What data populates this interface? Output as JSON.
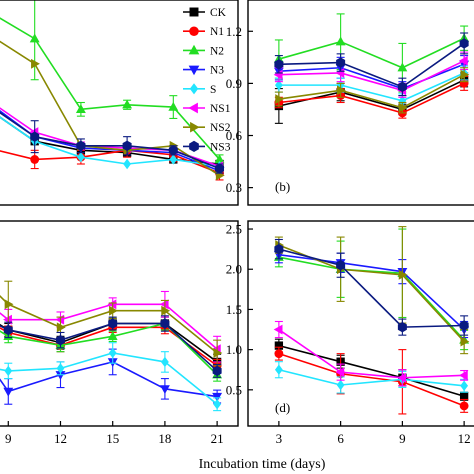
{
  "chart_data": {
    "type": "line",
    "xlabel": "Incubation time (days)",
    "legend": {
      "placement": "top-right of panel a",
      "entries": [
        {
          "name": "CK",
          "color": "#000000",
          "marker": "square"
        },
        {
          "name": "N1",
          "color": "#ff0000",
          "marker": "circle"
        },
        {
          "name": "N2",
          "color": "#22dd22",
          "marker": "triangle-up"
        },
        {
          "name": "N3",
          "color": "#1a1aff",
          "marker": "triangle-down"
        },
        {
          "name": "S",
          "color": "#22e5ff",
          "marker": "diamond"
        },
        {
          "name": "NS1",
          "color": "#ff00ff",
          "marker": "triangle-left"
        },
        {
          "name": "NS2",
          "color": "#888800",
          "marker": "triangle-right"
        },
        {
          "name": "NS3",
          "color": "#0a1a80",
          "marker": "hexagon"
        }
      ]
    },
    "panels": [
      {
        "id": "a",
        "panel_label": "",
        "x_ticks": [],
        "x_tick_labels": [],
        "y_tick_labels": [],
        "series": [
          {
            "name": "CK",
            "x": [
              6,
              9,
              12,
              15,
              18,
              21
            ],
            "y": [
              0.62,
              0.48,
              0.44,
              0.43,
              0.4,
              0.38
            ]
          },
          {
            "name": "N1",
            "x": [
              6,
              9,
              12,
              15,
              18,
              21
            ],
            "y": [
              0.45,
              0.4,
              0.41,
              0.44,
              0.42,
              0.34
            ],
            "err": [
              0,
              0.04,
              0.03,
              0.03,
              0.03,
              0.03
            ]
          },
          {
            "name": "N2",
            "x": [
              6,
              9,
              12,
              15,
              18,
              21
            ],
            "y": [
              1.05,
              0.93,
              0.62,
              0.64,
              0.63,
              0.4
            ],
            "err": [
              0,
              0.18,
              0.03,
              0.02,
              0.05,
              0.02
            ]
          },
          {
            "name": "N3",
            "x": [
              6,
              9,
              12,
              15,
              18,
              21
            ],
            "y": [
              0.65,
              0.5,
              0.45,
              0.44,
              0.43,
              0.35
            ]
          },
          {
            "name": "S",
            "x": [
              6,
              9,
              12,
              15,
              18,
              21
            ],
            "y": [
              0.62,
              0.48,
              0.41,
              0.38,
              0.4,
              0.37
            ]
          },
          {
            "name": "NS1",
            "x": [
              6,
              9,
              12,
              15,
              18,
              21
            ],
            "y": [
              0.66,
              0.52,
              0.46,
              0.45,
              0.44,
              0.37
            ]
          },
          {
            "name": "NS2",
            "x": [
              6,
              9,
              12,
              15,
              18,
              21
            ],
            "y": [
              0.95,
              0.82,
              0.46,
              0.44,
              0.46,
              0.33
            ]
          },
          {
            "name": "NS3",
            "x": [
              6,
              9,
              12,
              15,
              18,
              21
            ],
            "y": [
              0.64,
              0.5,
              0.46,
              0.46,
              0.44,
              0.36
            ],
            "err": [
              0,
              0.07,
              0.03,
              0.04,
              0.02,
              0.02
            ]
          }
        ]
      },
      {
        "id": "b",
        "panel_label": "(b)",
        "x_ticks": [],
        "x_tick_labels": [],
        "y_tick_labels": [
          "0.3",
          "0.6",
          "0.9",
          "1.2"
        ],
        "series": [
          {
            "name": "CK",
            "x": [
              3,
              6,
              9,
              12
            ],
            "y": [
              0.77,
              0.85,
              0.75,
              0.92
            ],
            "err": [
              0.1,
              0.05,
              0.03,
              0.04
            ]
          },
          {
            "name": "N1",
            "x": [
              3,
              6,
              9,
              12
            ],
            "y": [
              0.79,
              0.83,
              0.73,
              0.9
            ],
            "err": [
              0.03,
              0.04,
              0.03,
              0.04
            ]
          },
          {
            "name": "N2",
            "x": [
              3,
              6,
              9,
              12
            ],
            "y": [
              1.04,
              1.14,
              0.99,
              1.16
            ],
            "err": [
              0.11,
              0.16,
              0.14,
              0.07
            ]
          },
          {
            "name": "N3",
            "x": [
              3,
              6,
              9,
              12
            ],
            "y": [
              0.97,
              0.99,
              0.87,
              1.01
            ],
            "err": [
              0.05,
              0.06,
              0.04,
              0.05
            ]
          },
          {
            "name": "S",
            "x": [
              3,
              6,
              9,
              12
            ],
            "y": [
              0.89,
              0.89,
              0.8,
              0.96
            ],
            "err": [
              0.04,
              0.04,
              0.04,
              0.04
            ]
          },
          {
            "name": "NS1",
            "x": [
              3,
              6,
              9,
              12
            ],
            "y": [
              0.95,
              0.96,
              0.86,
              1.03
            ],
            "err": [
              0.04,
              0.05,
              0.04,
              0.05
            ]
          },
          {
            "name": "NS2",
            "x": [
              3,
              6,
              9,
              12
            ],
            "y": [
              0.81,
              0.86,
              0.76,
              0.95
            ],
            "err": [
              0.04,
              0.04,
              0.03,
              0.04
            ]
          },
          {
            "name": "NS3",
            "x": [
              3,
              6,
              9,
              12
            ],
            "y": [
              1.01,
              1.02,
              0.88,
              1.13
            ],
            "err": [
              0.05,
              0.05,
              0.05,
              0.06
            ]
          }
        ]
      },
      {
        "id": "c",
        "panel_label": "",
        "x_ticks": [
          9,
          12,
          15,
          18,
          21
        ],
        "x_tick_labels": [
          "9",
          "12",
          "15",
          "18",
          "21"
        ],
        "y_tick_labels": [],
        "series": [
          {
            "name": "CK",
            "x": [
              6,
              9,
              12,
              15,
              18,
              21
            ],
            "y": [
              1.05,
              0.8,
              0.7,
              0.85,
              0.85,
              0.55
            ],
            "err": [
              0,
              0.05,
              0.05,
              0.04,
              0.05,
              0.06
            ]
          },
          {
            "name": "N1",
            "x": [
              6,
              9,
              12,
              15,
              18,
              21
            ],
            "y": [
              1.0,
              0.78,
              0.68,
              0.82,
              0.82,
              0.52
            ],
            "err": [
              0,
              0.05,
              0.05,
              0.04,
              0.05,
              0.05
            ]
          },
          {
            "name": "N2",
            "x": [
              6,
              9,
              12,
              15,
              18,
              21
            ],
            "y": [
              1.0,
              0.75,
              0.68,
              0.75,
              0.85,
              0.45
            ],
            "err": [
              0,
              0.05,
              0.05,
              0.04,
              0.05,
              0.05
            ]
          },
          {
            "name": "N3",
            "x": [
              6,
              9,
              12,
              15,
              18,
              21
            ],
            "y": [
              0.9,
              0.32,
              0.45,
              0.55,
              0.34,
              0.28
            ],
            "err": [
              0,
              0.1,
              0.1,
              0.1,
              0.08,
              0.05
            ]
          },
          {
            "name": "S",
            "x": [
              6,
              9,
              12,
              15,
              18,
              21
            ],
            "y": [
              0.55,
              0.48,
              0.5,
              0.62,
              0.55,
              0.22
            ],
            "err": [
              0,
              0.06,
              0.05,
              0.08,
              0.08,
              0.05
            ]
          },
          {
            "name": "NS1",
            "x": [
              6,
              9,
              12,
              15,
              18,
              21
            ],
            "y": [
              1.2,
              0.88,
              0.88,
              1.0,
              1.0,
              0.65
            ],
            "err": [
              0,
              0.08,
              0.06,
              0.05,
              0.1,
              0.1
            ]
          },
          {
            "name": "NS2",
            "x": [
              6,
              9,
              12,
              15,
              18,
              21
            ],
            "y": [
              1.4,
              1.0,
              0.82,
              0.95,
              0.95,
              0.62
            ],
            "err": [
              0,
              0.18,
              0.08,
              0.06,
              0.08,
              0.1
            ]
          },
          {
            "name": "NS3",
            "x": [
              6,
              9,
              12,
              15,
              18,
              21
            ],
            "y": [
              1.0,
              0.8,
              0.72,
              0.85,
              0.85,
              0.48
            ],
            "err": [
              0,
              0.06,
              0.06,
              0.05,
              0.06,
              0.05
            ]
          }
        ]
      },
      {
        "id": "d",
        "panel_label": "(d)",
        "x_ticks": [
          3,
          6,
          9,
          12
        ],
        "x_tick_labels": [
          "3",
          "6",
          "9",
          "12"
        ],
        "y_tick_labels": [
          "0.5",
          "1.0",
          "1.5",
          "2.0",
          "2.5"
        ],
        "series": [
          {
            "name": "CK",
            "x": [
              3,
              6,
              9,
              12
            ],
            "y": [
              1.05,
              0.85,
              0.65,
              0.42
            ],
            "err": [
              0.08,
              0.08,
              0.1,
              0.05
            ]
          },
          {
            "name": "N1",
            "x": [
              3,
              6,
              9,
              12
            ],
            "y": [
              0.95,
              0.7,
              0.6,
              0.3
            ],
            "err": [
              0.08,
              0.25,
              0.4,
              0.08
            ]
          },
          {
            "name": "N2",
            "x": [
              3,
              6,
              9,
              12
            ],
            "y": [
              2.15,
              2.0,
              1.95,
              1.12
            ],
            "err": [
              0.12,
              0.35,
              0.55,
              0.12
            ]
          },
          {
            "name": "N3",
            "x": [
              3,
              6,
              9,
              12
            ],
            "y": [
              2.18,
              2.08,
              1.97,
              1.25
            ],
            "err": [
              0.1,
              0.12,
              0.15,
              0.1
            ]
          },
          {
            "name": "S",
            "x": [
              3,
              6,
              9,
              12
            ],
            "y": [
              0.75,
              0.56,
              0.63,
              0.55
            ],
            "err": [
              0.1,
              0.1,
              0.1,
              0.08
            ]
          },
          {
            "name": "NS1",
            "x": [
              3,
              6,
              9,
              12
            ],
            "y": [
              1.25,
              0.72,
              0.65,
              0.68
            ],
            "err": [
              0.1,
              0.1,
              0.1,
              0.06
            ]
          },
          {
            "name": "NS2",
            "x": [
              3,
              6,
              9,
              12
            ],
            "y": [
              2.3,
              2.0,
              1.93,
              1.1
            ],
            "err": [
              0.1,
              0.4,
              0.6,
              0.15
            ]
          },
          {
            "name": "NS3",
            "x": [
              3,
              6,
              9,
              12
            ],
            "y": [
              2.25,
              2.05,
              1.28,
              1.3
            ],
            "err": [
              0.12,
              0.15,
              0.1,
              0.12
            ]
          }
        ]
      }
    ]
  }
}
